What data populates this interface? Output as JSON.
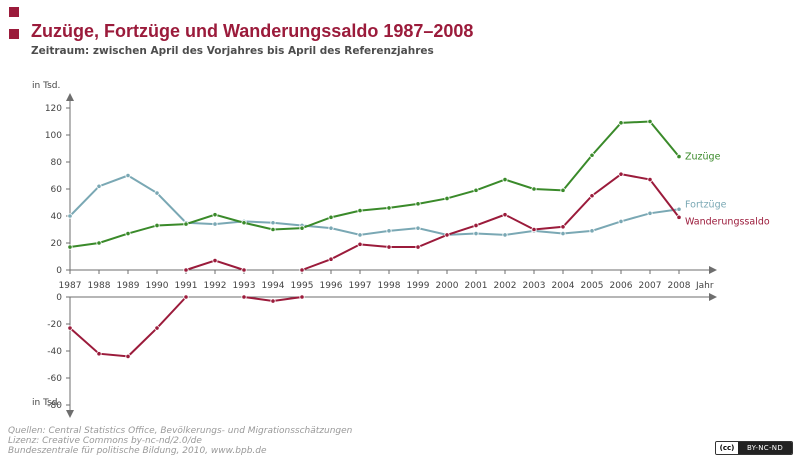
{
  "header": {
    "title": "Zuzüge, Fortzüge und Wanderungssaldo 1987–2008",
    "subtitle": "Zeitraum: zwischen April des Vorjahres bis April des Referenzjahres"
  },
  "source": {
    "line1": "Quellen: Central Statistics Office, Bevölkerungs- und Migrationsschätzungen",
    "line2": "Lizenz: Creative Commons by-nc-nd/2.0/de",
    "line3": "Bundeszentrale für politische Bildung, 2010, www.bpb.de"
  },
  "license_badge": {
    "mark": "(cc)",
    "text": "BY-NC-ND"
  },
  "colors": {
    "zuzuege": "#3a8a2a",
    "fortzuege": "#7aa8b4",
    "saldo": "#9b1b3b",
    "title": "#9b1b3b"
  },
  "chart_data": {
    "type": "line",
    "categories": [
      "1987",
      "1988",
      "1989",
      "1990",
      "1991",
      "1992",
      "1993",
      "1994",
      "1995",
      "1996",
      "1997",
      "1998",
      "1999",
      "2000",
      "2001",
      "2002",
      "2003",
      "2004",
      "2005",
      "2006",
      "2007",
      "2008"
    ],
    "xlabel": "Jahr",
    "ylabel": "in Tsd.",
    "ylabel_lower": "in Tsd.",
    "upper_ylim": [
      0,
      120
    ],
    "upper_ticks": [
      "0",
      "20",
      "40",
      "60",
      "80",
      "100",
      "120"
    ],
    "lower_ylim": [
      -80,
      0
    ],
    "lower_ticks": [
      "0",
      "-20",
      "-40",
      "-60",
      "-80"
    ],
    "grid": false,
    "legend": "inline-right",
    "series": [
      {
        "name": "Zuzüge",
        "color": "#3a8a2a",
        "values": [
          17,
          20,
          27,
          33,
          34,
          41,
          35,
          30,
          31,
          39,
          44,
          46,
          49,
          53,
          59,
          67,
          60,
          59,
          85,
          109,
          110,
          84
        ]
      },
      {
        "name": "Fortzüge",
        "color": "#7aa8b4",
        "values": [
          40,
          62,
          70,
          57,
          35,
          34,
          36,
          35,
          33,
          31,
          26,
          29,
          31,
          26,
          27,
          26,
          29,
          27,
          29,
          36,
          42,
          45
        ]
      },
      {
        "name": "Wanderungssaldo",
        "color": "#9b1b3b",
        "values": [
          -23,
          -42,
          -44,
          -23,
          0,
          7,
          0,
          -3,
          0,
          8,
          19,
          17,
          17,
          26,
          33,
          41,
          30,
          32,
          55,
          71,
          67,
          39
        ]
      }
    ]
  }
}
